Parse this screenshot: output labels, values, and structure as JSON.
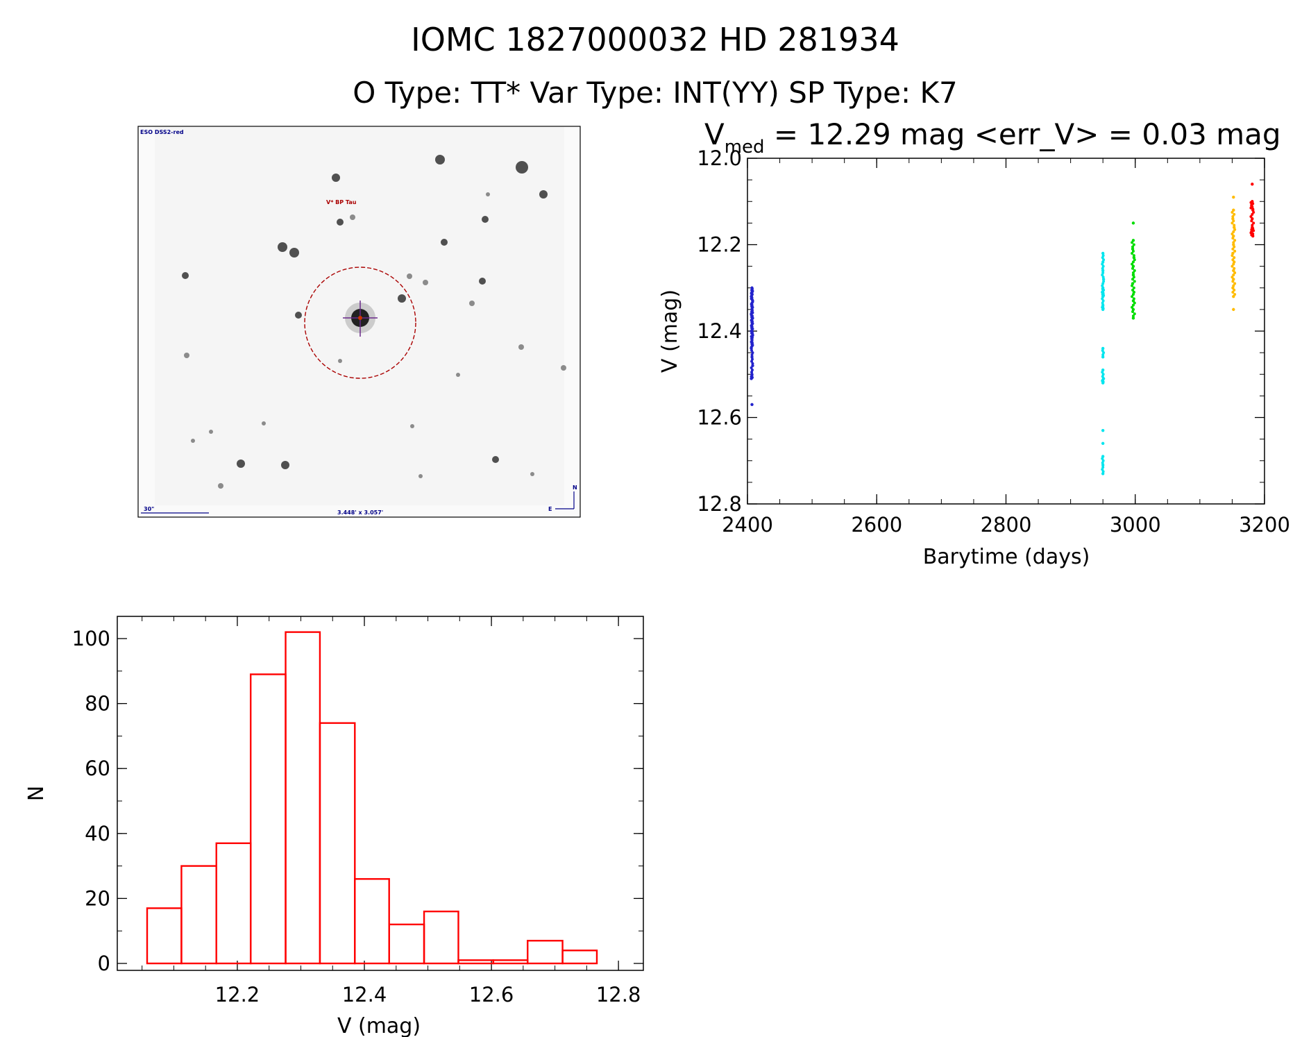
{
  "title": {
    "id_line": "IOMC 1827000032    HD 281934",
    "type_line": "O Type: TT*  Var Type: INT(YY)  SP Type: K7"
  },
  "finder": {
    "survey_label": "ESO DSS2-red",
    "star_label": "V* BP Tau",
    "scale_label": "30\"",
    "fov_label": "3.448' x 3.057'",
    "east_label": "E",
    "north_label": "N"
  },
  "colors": {
    "red": "#ff0000",
    "blue": "#2222cc",
    "cyan": "#00e5ee",
    "green": "#00dd00",
    "orange": "#ffbb00",
    "finder_text": "#000088",
    "marker_red": "#aa0000"
  },
  "chart_data": [
    {
      "type": "scatter",
      "title_prefix": "V",
      "title_subscript": "med",
      "title_rest": " = 12.29 mag <err_V> = 0.03 mag",
      "xlabel": "Barytime (days)",
      "ylabel": "V (mag)",
      "xlim": [
        2400,
        3200
      ],
      "ylim": [
        12.8,
        12.0
      ],
      "y_inverted": true,
      "xticks": [
        "2400",
        "2600",
        "2800",
        "3000",
        "3200"
      ],
      "yticks": [
        "12.0",
        "12.2",
        "12.4",
        "12.6",
        "12.8"
      ],
      "series": [
        {
          "color": "#2222cc",
          "x_range": [
            2406,
            2408
          ],
          "points": [
            [
              2407,
              12.3
            ],
            [
              2407,
              12.31
            ],
            [
              2406,
              12.32
            ],
            [
              2408,
              12.33
            ],
            [
              2407,
              12.34
            ],
            [
              2407,
              12.35
            ],
            [
              2406,
              12.36
            ],
            [
              2408,
              12.37
            ],
            [
              2407,
              12.38
            ],
            [
              2407,
              12.39
            ],
            [
              2406,
              12.4
            ],
            [
              2408,
              12.41
            ],
            [
              2407,
              12.42
            ],
            [
              2407,
              12.43
            ],
            [
              2406,
              12.44
            ],
            [
              2407,
              12.46
            ],
            [
              2408,
              12.48
            ],
            [
              2407,
              12.5
            ],
            [
              2406,
              12.51
            ],
            [
              2407,
              12.57
            ]
          ]
        },
        {
          "color": "#00e5ee",
          "x_range": [
            2949,
            2951
          ],
          "points": [
            [
              2950,
              12.22
            ],
            [
              2950,
              12.24
            ],
            [
              2950,
              12.26
            ],
            [
              2951,
              12.28
            ],
            [
              2950,
              12.3
            ],
            [
              2949,
              12.31
            ],
            [
              2950,
              12.32
            ],
            [
              2950,
              12.34
            ],
            [
              2950,
              12.35
            ],
            [
              2950,
              12.44
            ],
            [
              2950,
              12.46
            ],
            [
              2950,
              12.49
            ],
            [
              2951,
              12.51
            ],
            [
              2950,
              12.52
            ],
            [
              2950,
              12.63
            ],
            [
              2950,
              12.66
            ],
            [
              2950,
              12.69
            ],
            [
              2950,
              12.71
            ],
            [
              2950,
              12.73
            ]
          ]
        },
        {
          "color": "#00dd00",
          "x_range": [
            2995,
            2999
          ],
          "points": [
            [
              2997,
              12.15
            ],
            [
              2997,
              12.19
            ],
            [
              2996,
              12.21
            ],
            [
              2998,
              12.23
            ],
            [
              2997,
              12.25
            ],
            [
              2997,
              12.27
            ],
            [
              2996,
              12.29
            ],
            [
              2998,
              12.31
            ],
            [
              2997,
              12.33
            ],
            [
              2997,
              12.35
            ],
            [
              2997,
              12.37
            ]
          ]
        },
        {
          "color": "#ffbb00",
          "x_range": [
            3150,
            3154
          ],
          "points": [
            [
              3152,
              12.09
            ],
            [
              3152,
              12.12
            ],
            [
              3151,
              12.14
            ],
            [
              3153,
              12.16
            ],
            [
              3152,
              12.18
            ],
            [
              3152,
              12.2
            ],
            [
              3151,
              12.22
            ],
            [
              3153,
              12.24
            ],
            [
              3152,
              12.26
            ],
            [
              3152,
              12.28
            ],
            [
              3151,
              12.3
            ],
            [
              3152,
              12.32
            ],
            [
              3152,
              12.35
            ]
          ]
        },
        {
          "color": "#ff0000",
          "x_range": [
            3179,
            3183
          ],
          "points": [
            [
              3181,
              12.06
            ],
            [
              3181,
              12.1
            ],
            [
              3180,
              12.11
            ],
            [
              3182,
              12.12
            ],
            [
              3181,
              12.14
            ],
            [
              3181,
              12.16
            ],
            [
              3180,
              12.17
            ],
            [
              3182,
              12.18
            ]
          ]
        }
      ]
    },
    {
      "type": "bar",
      "subtype": "histogram",
      "xlabel": "V (mag)",
      "ylabel": "N",
      "xlim": [
        12.0,
        12.8
      ],
      "ylim": [
        0,
        105
      ],
      "xticks": [
        "12.2",
        "12.4",
        "12.6",
        "12.8"
      ],
      "yticks": [
        "0",
        "20",
        "40",
        "60",
        "80",
        "100"
      ],
      "bin_edges": [
        12.058,
        12.112,
        12.167,
        12.221,
        12.276,
        12.33,
        12.385,
        12.439,
        12.494,
        12.548,
        12.603,
        12.657,
        12.712,
        12.766
      ],
      "values": [
        17,
        30,
        37,
        89,
        102,
        74,
        26,
        12,
        16,
        1,
        1,
        7,
        4
      ],
      "color": "#ff0000"
    }
  ]
}
